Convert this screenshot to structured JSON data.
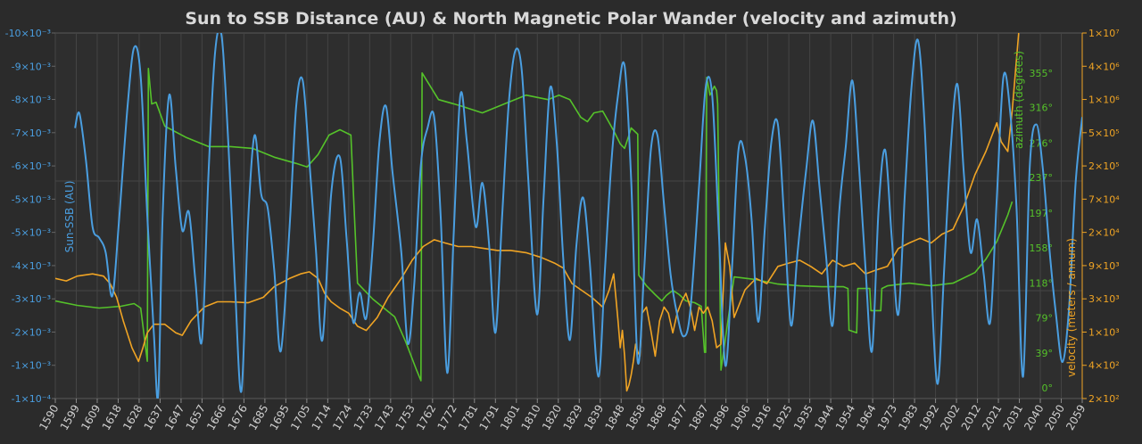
{
  "chart_data": {
    "type": "line",
    "title": "Sun to SSB Distance (AU) & North Magnetic Polar Wander (velocity and azimuth)",
    "x_ticks": [
      "1590",
      "1599",
      "1609",
      "1618",
      "1628",
      "1637",
      "1647",
      "1657",
      "1666",
      "1676",
      "1685",
      "1695",
      "1705",
      "1714",
      "1724",
      "1733",
      "1743",
      "1753",
      "1762",
      "1772",
      "1781",
      "1791",
      "1801",
      "1810",
      "1820",
      "1829",
      "1839",
      "1848",
      "1858",
      "1868",
      "1877",
      "1887",
      "1896",
      "1906",
      "1916",
      "1925",
      "1935",
      "1944",
      "1954",
      "1964",
      "1973",
      "1983",
      "1992",
      "2002",
      "2012",
      "2021",
      "2031",
      "2040",
      "2050",
      "2059"
    ],
    "xlim": [
      1590,
      2059
    ],
    "grid": true,
    "axes": {
      "left": {
        "label": "Sun-SSB (AU)",
        "color": "#4a9ee0",
        "tick_labels": [
          "-10×10⁻³",
          "-9×10⁻³",
          "-8×10⁻³",
          "-7×10⁻³",
          "-6×10⁻³",
          "-5×10⁻³",
          "-5×10⁻³",
          "-4×10⁻³",
          "-3×10⁻³",
          "-2×10⁻³",
          "-1×10⁻³",
          "-1×10⁻⁴"
        ]
      },
      "right_inner": {
        "label": "azimuth (degrees)",
        "color": "#55c22a",
        "ylim": [
          0,
          390
        ],
        "tick_labels": [
          "355°",
          "316°",
          "276°",
          "237°",
          "197°",
          "158°",
          "118°",
          "79°",
          "39°",
          "0°"
        ],
        "tick_values": [
          355,
          316,
          276,
          237,
          197,
          158,
          118,
          79,
          39,
          0
        ]
      },
      "right_outer": {
        "label": "velocity (meters / annum)",
        "color": "#f0a424",
        "scale": "log",
        "ylim": [
          200,
          10000000
        ],
        "tick_labels": [
          "1×10⁷",
          "4×10⁶",
          "1×10⁶",
          "5×10⁵",
          "2×10⁵",
          "7×10⁴",
          "2×10⁴",
          "9×10³",
          "3×10³",
          "1×10³",
          "4×10²",
          "2×10²"
        ]
      }
    },
    "series": [
      {
        "name": "Sun-SSB",
        "axis": "left",
        "color": "#4a9ee0",
        "x": [
          1599,
          1601,
          1604,
          1607,
          1610,
          1613,
          1616,
          1619,
          1623,
          1626,
          1629,
          1632,
          1635,
          1637,
          1639,
          1642,
          1645,
          1648,
          1651,
          1654,
          1657,
          1660,
          1663,
          1666,
          1669,
          1672,
          1675,
          1678,
          1681,
          1684,
          1687,
          1690,
          1693,
          1697,
          1700,
          1703,
          1706,
          1709,
          1712,
          1716,
          1720,
          1723,
          1726,
          1729,
          1732,
          1735,
          1738,
          1741,
          1744,
          1748,
          1751,
          1754,
          1757,
          1760,
          1763,
          1766,
          1769,
          1772,
          1775,
          1778,
          1782,
          1785,
          1788,
          1791,
          1794,
          1797,
          1800,
          1803,
          1806,
          1810,
          1813,
          1816,
          1819,
          1822,
          1825,
          1828,
          1831,
          1834,
          1838,
          1841,
          1844,
          1847,
          1850,
          1853,
          1856,
          1859,
          1862,
          1865,
          1868,
          1871,
          1874,
          1877,
          1880,
          1884,
          1887,
          1890,
          1893,
          1896,
          1899,
          1902,
          1905,
          1908,
          1911,
          1914,
          1917,
          1920,
          1923,
          1926,
          1929,
          1933,
          1936,
          1939,
          1942,
          1945,
          1948,
          1951,
          1954,
          1957,
          1960,
          1963,
          1966,
          1969,
          1972,
          1975,
          1978,
          1981,
          1984,
          1987,
          1990,
          1993,
          1996,
          1999,
          2002,
          2005,
          2008,
          2011,
          2014,
          2017,
          2020,
          2023,
          2026,
          2029,
          2032,
          2035,
          2038,
          2041,
          2044,
          2047,
          2050,
          2053,
          2056,
          2059
        ],
        "values": [
          7.4,
          7.8,
          6.5,
          4.7,
          4.4,
          4.0,
          2.8,
          4.8,
          8.0,
          9.6,
          8.8,
          5.0,
          1.8,
          0.1,
          5.0,
          8.3,
          6.3,
          4.6,
          5.1,
          3.2,
          1.6,
          6.2,
          9.5,
          9.9,
          7.0,
          3.2,
          0.2,
          4.8,
          7.2,
          5.6,
          5.2,
          3.5,
          1.3,
          4.7,
          8.0,
          8.7,
          6.5,
          4.1,
          1.6,
          5.6,
          6.6,
          4.4,
          2.1,
          2.9,
          2.2,
          4.2,
          7.0,
          8.0,
          6.2,
          4.0,
          1.5,
          3.2,
          6.4,
          7.4,
          7.7,
          5.0,
          0.7,
          4.6,
          8.3,
          7.0,
          4.7,
          5.9,
          4.3,
          1.8,
          4.9,
          8.0,
          9.5,
          9.0,
          6.0,
          2.3,
          5.5,
          8.5,
          7.0,
          3.8,
          1.6,
          4.2,
          5.5,
          3.8,
          0.6,
          3.5,
          6.5,
          8.3,
          9.1,
          6.0,
          1.0,
          3.6,
          6.8,
          7.2,
          5.3,
          3.4,
          2.3,
          1.7,
          2.4,
          5.8,
          8.5,
          8.3,
          4.6,
          0.9,
          3.5,
          6.8,
          6.6,
          4.9,
          2.1,
          4.6,
          7.0,
          7.5,
          4.8,
          2.0,
          4.0,
          6.3,
          7.6,
          5.8,
          3.9,
          2.0,
          5.1,
          6.9,
          8.7,
          6.4,
          3.6,
          1.3,
          5.2,
          6.8,
          4.4,
          2.3,
          5.6,
          8.5,
          9.8,
          7.5,
          3.2,
          0.4,
          3.6,
          6.9,
          8.6,
          6.1,
          4.0,
          4.9,
          3.4,
          2.1,
          5.5,
          8.8,
          7.9,
          5.2,
          0.6,
          6.3,
          7.5,
          6.3,
          4.1,
          2.3,
          1.0,
          2.5,
          5.9,
          7.7
        ]
      },
      {
        "name": "azimuth",
        "axis": "right_inner",
        "color": "#55c22a",
        "x": [
          1590,
          1600,
          1610,
          1620,
          1626,
          1629,
          1632,
          1632.5,
          1634,
          1636,
          1640,
          1650,
          1660,
          1670,
          1680,
          1690,
          1700,
          1705,
          1710,
          1715,
          1720,
          1725,
          1726.5,
          1728,
          1735,
          1745,
          1750,
          1755,
          1757,
          1757.5,
          1765,
          1775,
          1785,
          1795,
          1805,
          1815,
          1820,
          1825,
          1830,
          1833,
          1836,
          1840,
          1845,
          1848,
          1850,
          1852,
          1853,
          1856,
          1856.5,
          1860,
          1864,
          1867,
          1869,
          1872,
          1875,
          1878,
          1882,
          1885,
          1886.5,
          1887,
          1887.5,
          1889,
          1891,
          1892,
          1892.5,
          1894,
          1900,
          1910,
          1920,
          1930,
          1940,
          1950,
          1952,
          1952.5,
          1956,
          1956.5,
          1962,
          1962.5,
          1967,
          1967.5,
          1970,
          1980,
          1990,
          2000,
          2010,
          2015,
          2020,
          2025,
          2027
        ],
        "values": [
          98,
          93,
          90,
          92,
          95,
          90,
          30,
          360,
          320,
          322,
          295,
          282,
          272,
          272,
          270,
          260,
          253,
          249,
          263,
          285,
          291,
          285,
          200,
          118,
          100,
          80,
          52,
          20,
          8,
          355,
          325,
          318,
          310,
          320,
          330,
          325,
          330,
          325,
          305,
          300,
          310,
          312,
          290,
          275,
          270,
          285,
          293,
          286,
          127,
          115,
          105,
          98,
          104,
          110,
          105,
          98,
          96,
          92,
          40,
          40,
          350,
          330,
          340,
          335,
          320,
          20,
          125,
          122,
          117,
          115,
          114,
          114,
          112,
          65,
          62,
          112,
          112,
          87,
          87,
          112,
          115,
          118,
          115,
          118,
          130,
          145,
          165,
          195,
          210
        ]
      },
      {
        "name": "velocity",
        "axis": "right_outer",
        "color": "#f0a424",
        "x": [
          1590,
          1595,
          1600,
          1607,
          1612,
          1615,
          1618,
          1621,
          1625,
          1628,
          1630,
          1632,
          1635,
          1640,
          1645,
          1648,
          1652,
          1658,
          1664,
          1670,
          1678,
          1685,
          1690,
          1697,
          1702,
          1706,
          1710,
          1713,
          1716,
          1720,
          1724,
          1728,
          1732,
          1737,
          1742,
          1748,
          1753,
          1758,
          1763,
          1768,
          1774,
          1780,
          1786,
          1792,
          1798,
          1805,
          1812,
          1818,
          1822,
          1826,
          1830,
          1835,
          1840,
          1843,
          1845,
          1846,
          1847,
          1848,
          1849,
          1850,
          1851,
          1852,
          1853,
          1854,
          1855,
          1856,
          1857,
          1858,
          1860,
          1862,
          1864,
          1866,
          1868,
          1870,
          1872,
          1874,
          1876,
          1878,
          1880,
          1882,
          1884,
          1886,
          1888,
          1890,
          1892,
          1894,
          1896,
          1898,
          1900,
          1905,
          1910,
          1915,
          1920,
          1925,
          1930,
          1935,
          1940,
          1945,
          1950,
          1955,
          1960,
          1965,
          1970,
          1975,
          1980,
          1985,
          1990,
          1995,
          2000,
          2005,
          2010,
          2015,
          2020,
          2022,
          2025,
          2027,
          2030
        ],
        "values": [
          7000,
          6500,
          7500,
          8000,
          7500,
          6000,
          4000,
          2000,
          900,
          600,
          900,
          1400,
          1800,
          1800,
          1400,
          1300,
          2000,
          3000,
          3500,
          3500,
          3400,
          4000,
          5500,
          7000,
          8000,
          8500,
          7000,
          4500,
          3500,
          2900,
          2500,
          1700,
          1500,
          2200,
          4000,
          7000,
          12000,
          18000,
          22000,
          20000,
          18000,
          18000,
          17000,
          16000,
          16000,
          15000,
          13000,
          11000,
          9500,
          6000,
          5000,
          4000,
          3000,
          5000,
          8000,
          4000,
          2000,
          900,
          1500,
          700,
          250,
          300,
          400,
          600,
          1000,
          800,
          700,
          2500,
          3000,
          1500,
          700,
          2000,
          3000,
          2500,
          1400,
          2500,
          3500,
          4500,
          3000,
          1500,
          3000,
          2500,
          3000,
          2000,
          900,
          1000,
          20000,
          10000,
          2200,
          5000,
          7000,
          6000,
          10000,
          11000,
          12000,
          10000,
          8000,
          12000,
          10000,
          11000,
          8000,
          9000,
          10000,
          17000,
          20000,
          23000,
          20000,
          26000,
          30000,
          60000,
          150000,
          300000,
          700000,
          400000,
          300000,
          1000000,
          10000000
        ]
      }
    ]
  }
}
